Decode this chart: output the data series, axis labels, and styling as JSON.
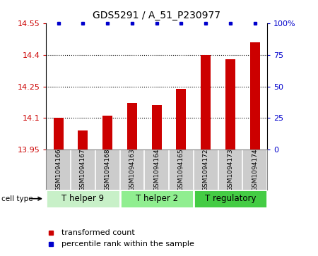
{
  "title": "GDS5291 / A_51_P230977",
  "samples": [
    "GSM1094166",
    "GSM1094167",
    "GSM1094168",
    "GSM1094163",
    "GSM1094164",
    "GSM1094165",
    "GSM1094172",
    "GSM1094173",
    "GSM1094174"
  ],
  "bar_values": [
    14.1,
    14.04,
    14.11,
    14.17,
    14.16,
    14.24,
    14.4,
    14.38,
    14.46
  ],
  "ylim_left": [
    13.95,
    14.55
  ],
  "ylim_right": [
    0,
    100
  ],
  "yticks_left": [
    13.95,
    14.1,
    14.25,
    14.4,
    14.55
  ],
  "yticks_right": [
    0,
    25,
    50,
    75,
    100
  ],
  "ytick_labels_left": [
    "13.95",
    "14.1",
    "14.25",
    "14.4",
    "14.55"
  ],
  "ytick_labels_right": [
    "0",
    "25",
    "50",
    "75",
    "100%"
  ],
  "hlines": [
    14.1,
    14.25,
    14.4
  ],
  "bar_color": "#cc0000",
  "percentile_color": "#0000cc",
  "cell_type_groups": [
    {
      "label": "T helper 9",
      "start": 0,
      "end": 3,
      "color": "#c8f0c8"
    },
    {
      "label": "T helper 2",
      "start": 3,
      "end": 6,
      "color": "#90ee90"
    },
    {
      "label": "T regulatory",
      "start": 6,
      "end": 9,
      "color": "#44cc44"
    }
  ],
  "legend_items": [
    {
      "label": "transformed count",
      "color": "#cc0000"
    },
    {
      "label": "percentile rank within the sample",
      "color": "#0000cc"
    }
  ],
  "cell_type_label": "cell type",
  "title_fontsize": 10,
  "tick_fontsize": 8,
  "sample_fontsize": 6.5,
  "legend_fontsize": 8,
  "celltype_fontsize": 8.5,
  "bar_width": 0.4,
  "sample_box_color": "#cccccc",
  "sample_box_border": "#888888"
}
